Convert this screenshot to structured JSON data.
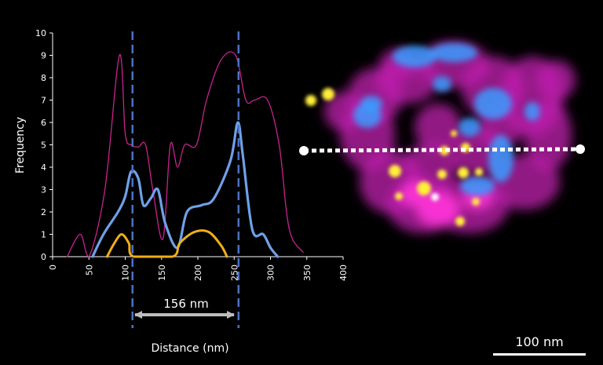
{
  "chart_data": {
    "type": "line",
    "ylabel": "Frequency",
    "xlabel": "Distance (nm)",
    "xlim": [
      0,
      400
    ],
    "ylim": [
      0,
      10
    ],
    "xticks": [
      "0",
      "50",
      "100",
      "150",
      "200",
      "250",
      "300",
      "350",
      "400"
    ],
    "yticks": [
      "0",
      "1",
      "2",
      "3",
      "4",
      "5",
      "6",
      "7",
      "8",
      "9",
      "10"
    ],
    "series": [
      {
        "name": "magenta",
        "color": "#c8238f",
        "x": [
          20,
          38,
          50,
          72,
          92,
          100,
          108,
          118,
          128,
          138,
          152,
          162,
          172,
          182,
          198,
          212,
          232,
          252,
          266,
          278,
          296,
          312,
          322,
          330,
          345
        ],
        "y": [
          0,
          1,
          0,
          3,
          9,
          5.5,
          5,
          4.9,
          5,
          3,
          0.8,
          5,
          4,
          5,
          5,
          7,
          8.8,
          9,
          7,
          7,
          7,
          5,
          2,
          0.8,
          0.2
        ]
      },
      {
        "name": "blue",
        "color": "#6fa0e8",
        "x": [
          55,
          70,
          90,
          100,
          108,
          118,
          125,
          135,
          145,
          155,
          172,
          185,
          205,
          222,
          245,
          255,
          262,
          275,
          290,
          300,
          310
        ],
        "y": [
          0,
          1,
          2,
          2.7,
          3.8,
          3.5,
          2.3,
          2.6,
          3,
          1.5,
          0.4,
          2,
          2.3,
          2.6,
          4.3,
          6,
          4.5,
          1.2,
          1,
          0.4,
          0
        ]
      },
      {
        "name": "yellow",
        "color": "#f0ad1a",
        "x": [
          75,
          85,
          95,
          105,
          112,
          165,
          175,
          195,
          215,
          232,
          240
        ],
        "y": [
          0,
          0.6,
          1,
          0.6,
          0,
          0,
          0.6,
          1.1,
          1.1,
          0.5,
          0
        ]
      }
    ],
    "markers": [
      110,
      256
    ],
    "annotation": "156 nm",
    "scale_label": "100 nm"
  }
}
